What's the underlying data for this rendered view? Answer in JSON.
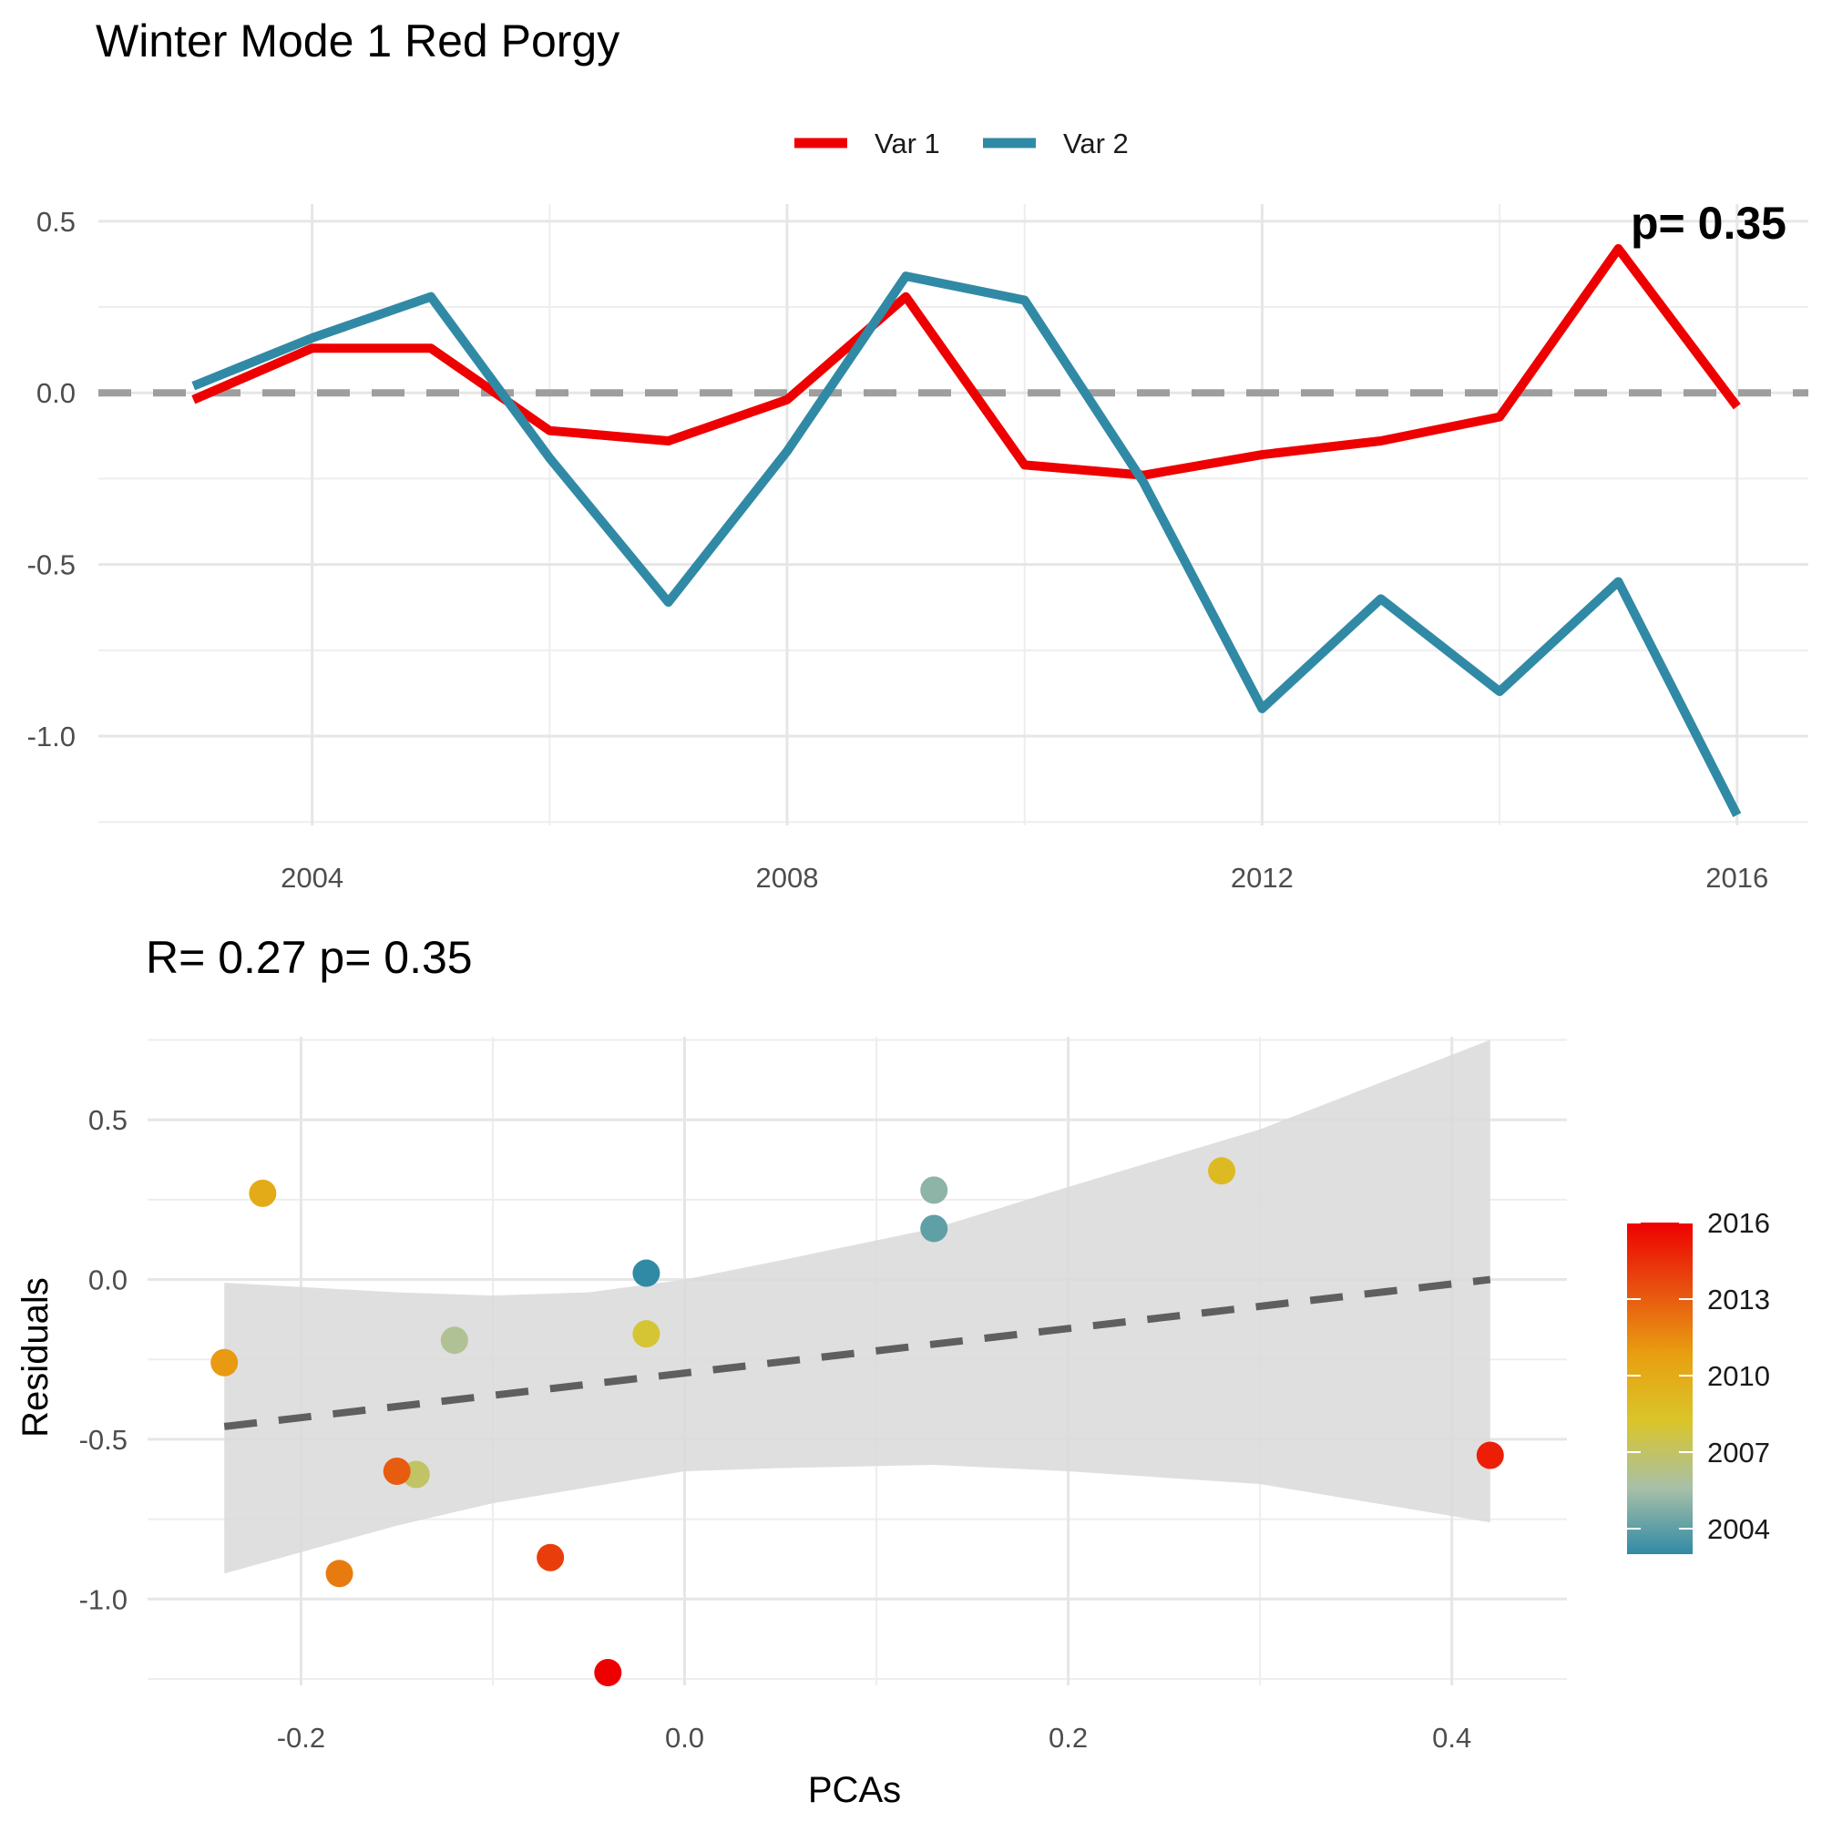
{
  "page": {
    "title": "Winter Mode 1  Red Porgy"
  },
  "chart_data": [
    {
      "type": "line",
      "title": "Winter Mode 1  Red Porgy",
      "xlabel": "",
      "ylabel": "",
      "xlim": [
        2002.2,
        2016.6
      ],
      "ylim": [
        -1.26,
        0.55
      ],
      "x_ticks": [
        2004,
        2008,
        2012,
        2016
      ],
      "x_tick_labels": [
        "2004",
        "2008",
        "2012",
        "2016"
      ],
      "y_ticks": [
        0.5,
        0.0,
        -0.5,
        -1.0
      ],
      "y_tick_labels": [
        "0.5",
        "0.0",
        "-0.5",
        "-1.0"
      ],
      "grid": true,
      "legend_position": "top",
      "reference_line": {
        "y": 0,
        "style": "dashed",
        "color": "#9e9e9e"
      },
      "x": [
        2003,
        2004,
        2005,
        2006,
        2007,
        2008,
        2009,
        2010,
        2011,
        2012,
        2013,
        2014,
        2015,
        2016
      ],
      "series": [
        {
          "name": "Var 1",
          "color": "#ee0000",
          "values": [
            -0.02,
            0.13,
            0.13,
            -0.11,
            -0.14,
            -0.02,
            0.28,
            -0.21,
            -0.24,
            -0.18,
            -0.14,
            -0.07,
            0.42,
            -0.04
          ]
        },
        {
          "name": "Var 2",
          "color": "#318aa5",
          "values": [
            0.02,
            0.16,
            0.28,
            -0.19,
            -0.61,
            -0.17,
            0.34,
            0.27,
            -0.26,
            -0.92,
            -0.6,
            -0.87,
            -0.55,
            -1.23
          ]
        }
      ],
      "corner_annotation": "p= 0.35"
    },
    {
      "type": "scatter",
      "title": "R= 0.27  p= 0.35",
      "xlabel": "PCAs",
      "ylabel": "Residuals",
      "xlim": [
        -0.28,
        0.46
      ],
      "ylim": [
        -1.27,
        0.76
      ],
      "x_ticks": [
        -0.2,
        0.0,
        0.2,
        0.4
      ],
      "x_tick_labels": [
        "-0.2",
        "0.0",
        "0.2",
        "0.4"
      ],
      "y_ticks": [
        0.5,
        0.0,
        -0.5,
        -1.0
      ],
      "y_tick_labels": [
        "0.5",
        "0.0",
        "-0.5",
        "-1.0"
      ],
      "grid": true,
      "points": [
        {
          "x": -0.02,
          "y": 0.02,
          "year": 2003
        },
        {
          "x": 0.13,
          "y": 0.16,
          "year": 2004
        },
        {
          "x": 0.13,
          "y": 0.28,
          "year": 2005
        },
        {
          "x": -0.12,
          "y": -0.19,
          "year": 2006
        },
        {
          "x": -0.14,
          "y": -0.61,
          "year": 2007
        },
        {
          "x": -0.02,
          "y": -0.17,
          "year": 2008
        },
        {
          "x": 0.28,
          "y": 0.34,
          "year": 2009
        },
        {
          "x": -0.22,
          "y": 0.27,
          "year": 2010
        },
        {
          "x": -0.24,
          "y": -0.26,
          "year": 2011
        },
        {
          "x": -0.18,
          "y": -0.92,
          "year": 2012
        },
        {
          "x": -0.15,
          "y": -0.6,
          "year": 2013
        },
        {
          "x": -0.07,
          "y": -0.87,
          "year": 2014
        },
        {
          "x": 0.42,
          "y": -0.55,
          "year": 2015
        },
        {
          "x": -0.04,
          "y": -1.23,
          "year": 2016
        }
      ],
      "fit_line": {
        "x": [
          -0.24,
          0.42
        ],
        "y": [
          -0.46,
          0.0
        ],
        "style": "dashed",
        "color": "#5f5f5f"
      },
      "confidence_band": {
        "x": [
          -0.24,
          -0.15,
          -0.1,
          -0.05,
          0.0,
          0.05,
          0.13,
          0.2,
          0.3,
          0.42
        ],
        "upper": [
          -0.01,
          -0.04,
          -0.05,
          -0.04,
          0.0,
          0.06,
          0.16,
          0.29,
          0.47,
          0.75
        ],
        "lower": [
          -0.92,
          -0.77,
          -0.7,
          -0.65,
          -0.6,
          -0.59,
          -0.58,
          -0.6,
          -0.64,
          -0.76
        ],
        "color": "#d9d9d9"
      },
      "colorbar": {
        "min_year": 2003,
        "max_year": 2016,
        "tick_years": [
          2016,
          2013,
          2010,
          2007,
          2004
        ],
        "tick_labels": [
          "2016",
          "2013",
          "2010",
          "2007",
          "2004"
        ],
        "colors": [
          "#318aa5",
          "#a8c0a8",
          "#d9c52a",
          "#e8a010",
          "#e85010",
          "#ee0000"
        ]
      }
    }
  ]
}
